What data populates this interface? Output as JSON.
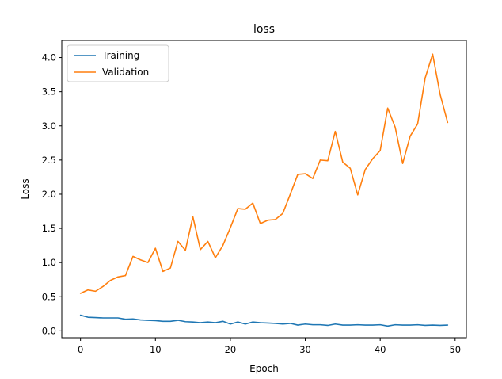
{
  "chart_data": {
    "type": "line",
    "title": "loss",
    "xlabel": "Epoch",
    "ylabel": "Loss",
    "xlim": [
      -2.5,
      51.5
    ],
    "ylim": [
      -0.1,
      4.25
    ],
    "xticks": [
      0,
      10,
      20,
      30,
      40,
      50
    ],
    "yticks": [
      0.0,
      0.5,
      1.0,
      1.5,
      2.0,
      2.5,
      3.0,
      3.5,
      4.0
    ],
    "grid": false,
    "legend_position": "top-left",
    "x": [
      0,
      1,
      2,
      3,
      4,
      5,
      6,
      7,
      8,
      9,
      10,
      11,
      12,
      13,
      14,
      15,
      16,
      17,
      18,
      19,
      20,
      21,
      22,
      23,
      24,
      25,
      26,
      27,
      28,
      29,
      30,
      31,
      32,
      33,
      34,
      35,
      36,
      37,
      38,
      39,
      40,
      41,
      42,
      43,
      44,
      45,
      46,
      47,
      48,
      49
    ],
    "series": [
      {
        "name": "Training",
        "color": "#1f77b4",
        "values": [
          0.23,
          0.2,
          0.195,
          0.19,
          0.19,
          0.19,
          0.17,
          0.175,
          0.16,
          0.155,
          0.15,
          0.14,
          0.14,
          0.155,
          0.135,
          0.13,
          0.12,
          0.13,
          0.12,
          0.14,
          0.1,
          0.13,
          0.1,
          0.13,
          0.12,
          0.115,
          0.11,
          0.1,
          0.11,
          0.085,
          0.1,
          0.09,
          0.09,
          0.08,
          0.1,
          0.085,
          0.085,
          0.09,
          0.085,
          0.085,
          0.09,
          0.07,
          0.09,
          0.085,
          0.085,
          0.09,
          0.08,
          0.085,
          0.08,
          0.085
        ]
      },
      {
        "name": "Validation",
        "color": "#ff7f0e",
        "values": [
          0.55,
          0.6,
          0.58,
          0.65,
          0.74,
          0.79,
          0.81,
          1.09,
          1.04,
          1.0,
          1.21,
          0.87,
          0.92,
          1.31,
          1.18,
          1.67,
          1.19,
          1.31,
          1.07,
          1.25,
          1.51,
          1.79,
          1.78,
          1.87,
          1.57,
          1.62,
          1.63,
          1.72,
          2.0,
          2.29,
          2.3,
          2.23,
          2.5,
          2.49,
          2.92,
          2.47,
          2.38,
          1.99,
          2.36,
          2.52,
          2.64,
          3.26,
          2.98,
          2.45,
          2.85,
          3.03,
          3.7,
          4.05,
          3.46,
          3.05
        ]
      }
    ]
  }
}
